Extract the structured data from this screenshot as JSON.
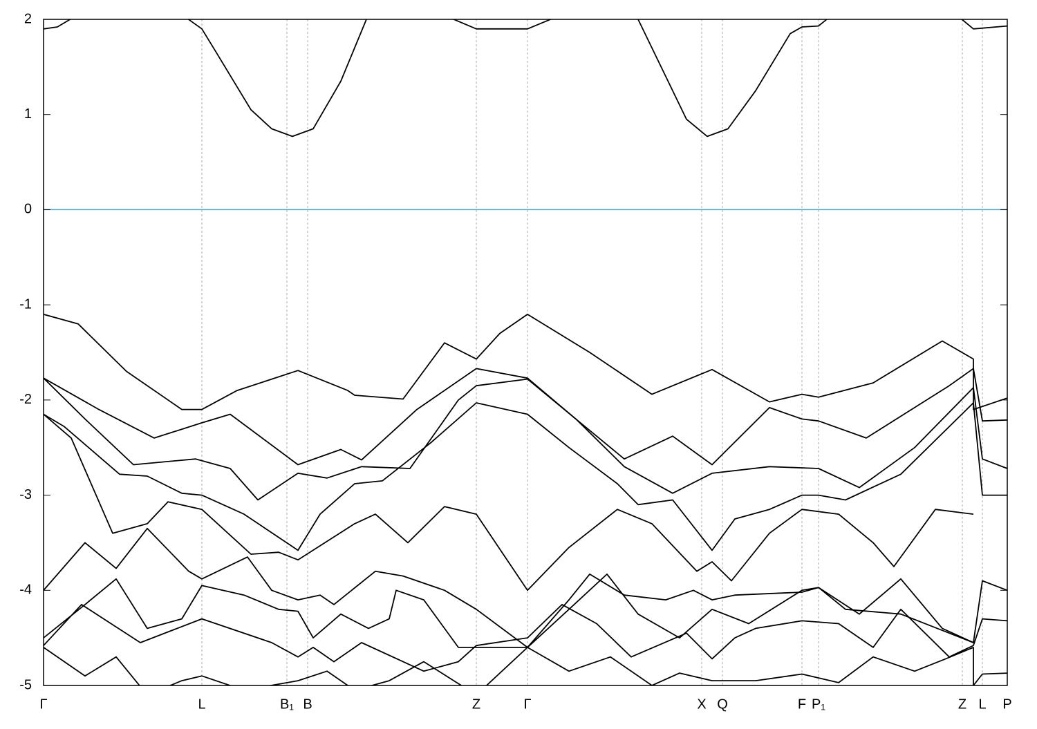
{
  "chart_data": {
    "type": "line",
    "xlim": [
      0,
      13.94
    ],
    "ylim": [
      -5,
      2
    ],
    "yticks": [
      2,
      1,
      0,
      -1,
      -2,
      -3,
      -4,
      -5
    ],
    "xticks": [
      {
        "value": 0,
        "label": "Γ"
      },
      {
        "value": 2.29,
        "label": "L"
      },
      {
        "value": 3.52,
        "label": "B₁"
      },
      {
        "value": 3.82,
        "label": "B"
      },
      {
        "value": 6.26,
        "label": "Z"
      },
      {
        "value": 7.0,
        "label": "Γ"
      },
      {
        "value": 9.52,
        "label": "X"
      },
      {
        "value": 9.82,
        "label": "Q"
      },
      {
        "value": 10.97,
        "label": "F"
      },
      {
        "value": 11.21,
        "label": "P₁"
      },
      {
        "value": 13.29,
        "label": "Z"
      },
      {
        "value": 13.58,
        "label": "L"
      },
      {
        "value": 13.94,
        "label": "P"
      }
    ],
    "xgrid": true,
    "reference_line": {
      "y": 0,
      "color": "#4aa8c8"
    },
    "series": [
      {
        "color": "#000000",
        "x": [
          0,
          0.2,
          0.5,
          1.0,
          2.0,
          2.29,
          2.5,
          3.0,
          3.3,
          3.6,
          3.9,
          4.3,
          4.67,
          5.0,
          5.77,
          6.26,
          7.0,
          7.5,
          8.5,
          8.6,
          9.0,
          9.3,
          9.6,
          9.9,
          10.3,
          10.8,
          10.97,
          11.21,
          11.5,
          13.2,
          13.45,
          13.94
        ],
        "values": [
          1.9,
          1.92,
          2.05,
          2.2,
          2.05,
          1.9,
          1.65,
          1.05,
          0.85,
          0.77,
          0.85,
          1.35,
          2.0,
          2.2,
          2.05,
          1.9,
          1.9,
          2.05,
          2.2,
          2.0,
          1.4,
          0.95,
          0.77,
          0.85,
          1.25,
          1.85,
          1.92,
          1.93,
          2.1,
          2.05,
          1.9,
          1.93
        ]
      },
      {
        "color": "#000000",
        "x": [
          0,
          0.5,
          1.2,
          2.0,
          2.29,
          2.8,
          3.68,
          4.4,
          4.5,
          5.2,
          5.8,
          6.26,
          6.6,
          7.0,
          7.9,
          8.8,
          9.67,
          10.5,
          10.97,
          11.21,
          12.0,
          13.0,
          13.45,
          13.45,
          13.94
        ],
        "values": [
          -1.1,
          -1.2,
          -1.7,
          -2.1,
          -2.1,
          -1.9,
          -1.69,
          -1.9,
          -1.95,
          -1.99,
          -1.4,
          -1.57,
          -1.3,
          -1.1,
          -1.5,
          -1.94,
          -1.68,
          -2.02,
          -1.94,
          -1.97,
          -1.82,
          -1.38,
          -1.57,
          -2.1,
          -1.98
        ]
      },
      {
        "color": "#000000",
        "x": [
          0,
          0.8,
          1.6,
          2.29,
          2.7,
          3.68,
          4.3,
          4.6,
          5.4,
          6.26,
          7.0,
          7.7,
          8.4,
          9.1,
          9.67,
          10.5,
          10.97,
          11.21,
          11.9,
          13.1,
          13.45,
          13.58,
          13.94
        ],
        "values": [
          -1.77,
          -2.1,
          -2.4,
          -2.24,
          -2.15,
          -2.68,
          -2.52,
          -2.63,
          -2.1,
          -1.67,
          -1.77,
          -2.2,
          -2.62,
          -2.38,
          -2.68,
          -2.08,
          -2.2,
          -2.22,
          -2.4,
          -1.85,
          -1.67,
          -2.22,
          -2.21
        ]
      },
      {
        "color": "#000000",
        "x": [
          0,
          0.6,
          1.3,
          2.2,
          2.7,
          3.1,
          3.68,
          4.1,
          4.6,
          5.3,
          6.0,
          6.26,
          7.0,
          7.7,
          8.4,
          9.1,
          9.67,
          10.5,
          11.21,
          11.8,
          12.6,
          13.45,
          13.58,
          13.94
        ],
        "values": [
          -1.77,
          -2.2,
          -2.68,
          -2.62,
          -2.72,
          -3.05,
          -2.77,
          -2.82,
          -2.7,
          -2.72,
          -2.0,
          -1.85,
          -1.78,
          -2.2,
          -2.7,
          -2.98,
          -2.77,
          -2.7,
          -2.72,
          -2.92,
          -2.5,
          -1.87,
          -2.62,
          -2.72
        ]
      },
      {
        "color": "#000000",
        "x": [
          0,
          0.3,
          1.1,
          1.5,
          2.0,
          2.29,
          2.9,
          3.68,
          4.0,
          4.5,
          4.9,
          5.6,
          6.26,
          7.0,
          7.6,
          8.3,
          8.6,
          9.1,
          9.67,
          10.0,
          10.5,
          10.97,
          11.21,
          11.6,
          12.4,
          13.45,
          13.58,
          13.94
        ],
        "values": [
          -2.15,
          -2.28,
          -2.78,
          -2.8,
          -2.98,
          -3.0,
          -3.2,
          -3.58,
          -3.2,
          -2.88,
          -2.85,
          -2.45,
          -2.03,
          -2.15,
          -2.5,
          -2.88,
          -3.1,
          -3.05,
          -3.58,
          -3.25,
          -3.15,
          -3.0,
          -3.0,
          -3.05,
          -2.78,
          -2.03,
          -3.0,
          -3.0
        ]
      },
      {
        "color": "#000000",
        "x": [
          0,
          0.4,
          1.0,
          1.5,
          1.8,
          2.29,
          3.0,
          3.4,
          3.68,
          4.5,
          4.8,
          5.27,
          5.8,
          6.26,
          7.0,
          7.6,
          8.3,
          8.8,
          9.45,
          9.67,
          9.95,
          10.5,
          10.97,
          11.5,
          12.0,
          12.3,
          12.9,
          13.45
        ],
        "values": [
          -2.15,
          -2.4,
          -3.4,
          -3.3,
          -3.07,
          -3.15,
          -3.62,
          -3.6,
          -3.68,
          -3.3,
          -3.2,
          -3.5,
          -3.12,
          -3.2,
          -4.0,
          -3.55,
          -3.15,
          -3.3,
          -3.8,
          -3.7,
          -3.9,
          -3.4,
          -3.15,
          -3.2,
          -3.5,
          -3.75,
          -3.15,
          -3.2
        ]
      },
      {
        "color": "#000000",
        "x": [
          0,
          0.6,
          1.05,
          1.5,
          2.1,
          2.29,
          2.95,
          3.3,
          3.68,
          4.0,
          4.2,
          4.8,
          5.2,
          5.8,
          6.26,
          7.0,
          7.6,
          7.9,
          8.4,
          9.0,
          9.4,
          9.67,
          10.0,
          10.97,
          11.21,
          11.6,
          12.4,
          13.45
        ],
        "values": [
          -4.0,
          -3.5,
          -3.77,
          -3.35,
          -3.8,
          -3.88,
          -3.65,
          -4.0,
          -4.1,
          -4.05,
          -4.15,
          -3.8,
          -3.85,
          -4.0,
          -4.2,
          -4.6,
          -4.1,
          -3.83,
          -4.05,
          -4.1,
          -4.0,
          -4.1,
          -4.05,
          -4.02,
          -3.97,
          -4.2,
          -4.25,
          -4.55
        ]
      },
      {
        "color": "#000000",
        "x": [
          0,
          0.6,
          1.05,
          1.5,
          2.0,
          2.29,
          2.9,
          3.4,
          3.68,
          3.9,
          4.3,
          4.7,
          5.0,
          5.1,
          5.5,
          6.0,
          6.26,
          7.0,
          7.6,
          8.15,
          8.6,
          9.2,
          9.67,
          10.2,
          10.97,
          11.21,
          11.8,
          12.4,
          13.0,
          13.45,
          13.58,
          13.94
        ],
        "values": [
          -4.5,
          -4.15,
          -3.88,
          -4.4,
          -4.3,
          -3.95,
          -4.05,
          -4.2,
          -4.22,
          -4.5,
          -4.25,
          -4.4,
          -4.3,
          -4.0,
          -4.1,
          -4.6,
          -4.6,
          -4.6,
          -4.2,
          -3.83,
          -4.25,
          -4.5,
          -4.2,
          -4.35,
          -4.0,
          -3.97,
          -4.25,
          -3.88,
          -4.4,
          -4.55,
          -3.9,
          -4.0
        ]
      },
      {
        "color": "#000000",
        "x": [
          0,
          0.55,
          1.4,
          2.29,
          3.3,
          3.68,
          3.9,
          4.2,
          4.6,
          5.5,
          6.0,
          6.26,
          7.0,
          7.5,
          8.0,
          8.5,
          9.3,
          9.67,
          10.0,
          10.3,
          10.97,
          11.5,
          12.0,
          12.4,
          13.1,
          13.45,
          13.58,
          13.94
        ],
        "values": [
          -4.58,
          -4.15,
          -4.55,
          -4.3,
          -4.55,
          -4.7,
          -4.6,
          -4.75,
          -4.55,
          -4.85,
          -4.75,
          -4.58,
          -4.5,
          -4.15,
          -4.35,
          -4.7,
          -4.45,
          -4.72,
          -4.5,
          -4.4,
          -4.32,
          -4.35,
          -4.6,
          -4.2,
          -4.7,
          -4.58,
          -4.3,
          -4.32
        ]
      },
      {
        "color": "#000000",
        "x": [
          0,
          0.6,
          1.05,
          1.5,
          2.0,
          2.29,
          2.9,
          3.68,
          4.1,
          4.5,
          5.0,
          5.5,
          6.26,
          7.0,
          7.6,
          8.2,
          8.8,
          9.2,
          9.67,
          10.3,
          10.97,
          11.5,
          12.0,
          12.6,
          13.05,
          13.45,
          13.45,
          13.58,
          13.94
        ],
        "values": [
          -4.6,
          -4.9,
          -4.7,
          -5.1,
          -4.95,
          -4.9,
          -5.05,
          -4.95,
          -4.85,
          -5.05,
          -4.95,
          -4.75,
          -5.1,
          -4.6,
          -4.85,
          -4.7,
          -5.0,
          -4.87,
          -4.95,
          -4.95,
          -4.88,
          -4.97,
          -4.7,
          -4.85,
          -4.72,
          -4.6,
          -5.0,
          -4.88,
          -4.87
        ]
      }
    ]
  }
}
